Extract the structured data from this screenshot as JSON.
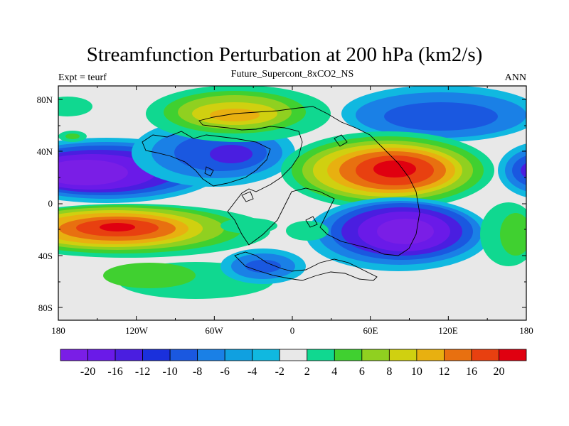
{
  "title": "Streamfunction Perturbation at 200 hPa (km2/s)",
  "subtitle_left": "Expt = teurf",
  "subtitle_center": "Future_Supercont_8xCO2_NS",
  "subtitle_right": "ANN",
  "map": {
    "x_ticks": [
      "180",
      "120W",
      "60W",
      "0",
      "60E",
      "120E",
      "180"
    ],
    "y_ticks": [
      "80N",
      "40N",
      "0",
      "40S",
      "80S"
    ],
    "background_color": "#e8e8e8"
  },
  "colorbar": {
    "labels": [
      "-20",
      "-16",
      "-12",
      "-10",
      "-8",
      "-6",
      "-4",
      "-2",
      "2",
      "4",
      "6",
      "8",
      "10",
      "12",
      "16",
      "20"
    ],
    "colors": [
      "#7a1ee6",
      "#6a1ae8",
      "#4a1ee0",
      "#1a30dc",
      "#1a58e0",
      "#1a80e6",
      "#10a0e0",
      "#10b8e0",
      "#e8e8e8",
      "#10d890",
      "#40d030",
      "#90d020",
      "#d0d010",
      "#e8b010",
      "#e87010",
      "#e84010",
      "#e00010"
    ]
  }
}
